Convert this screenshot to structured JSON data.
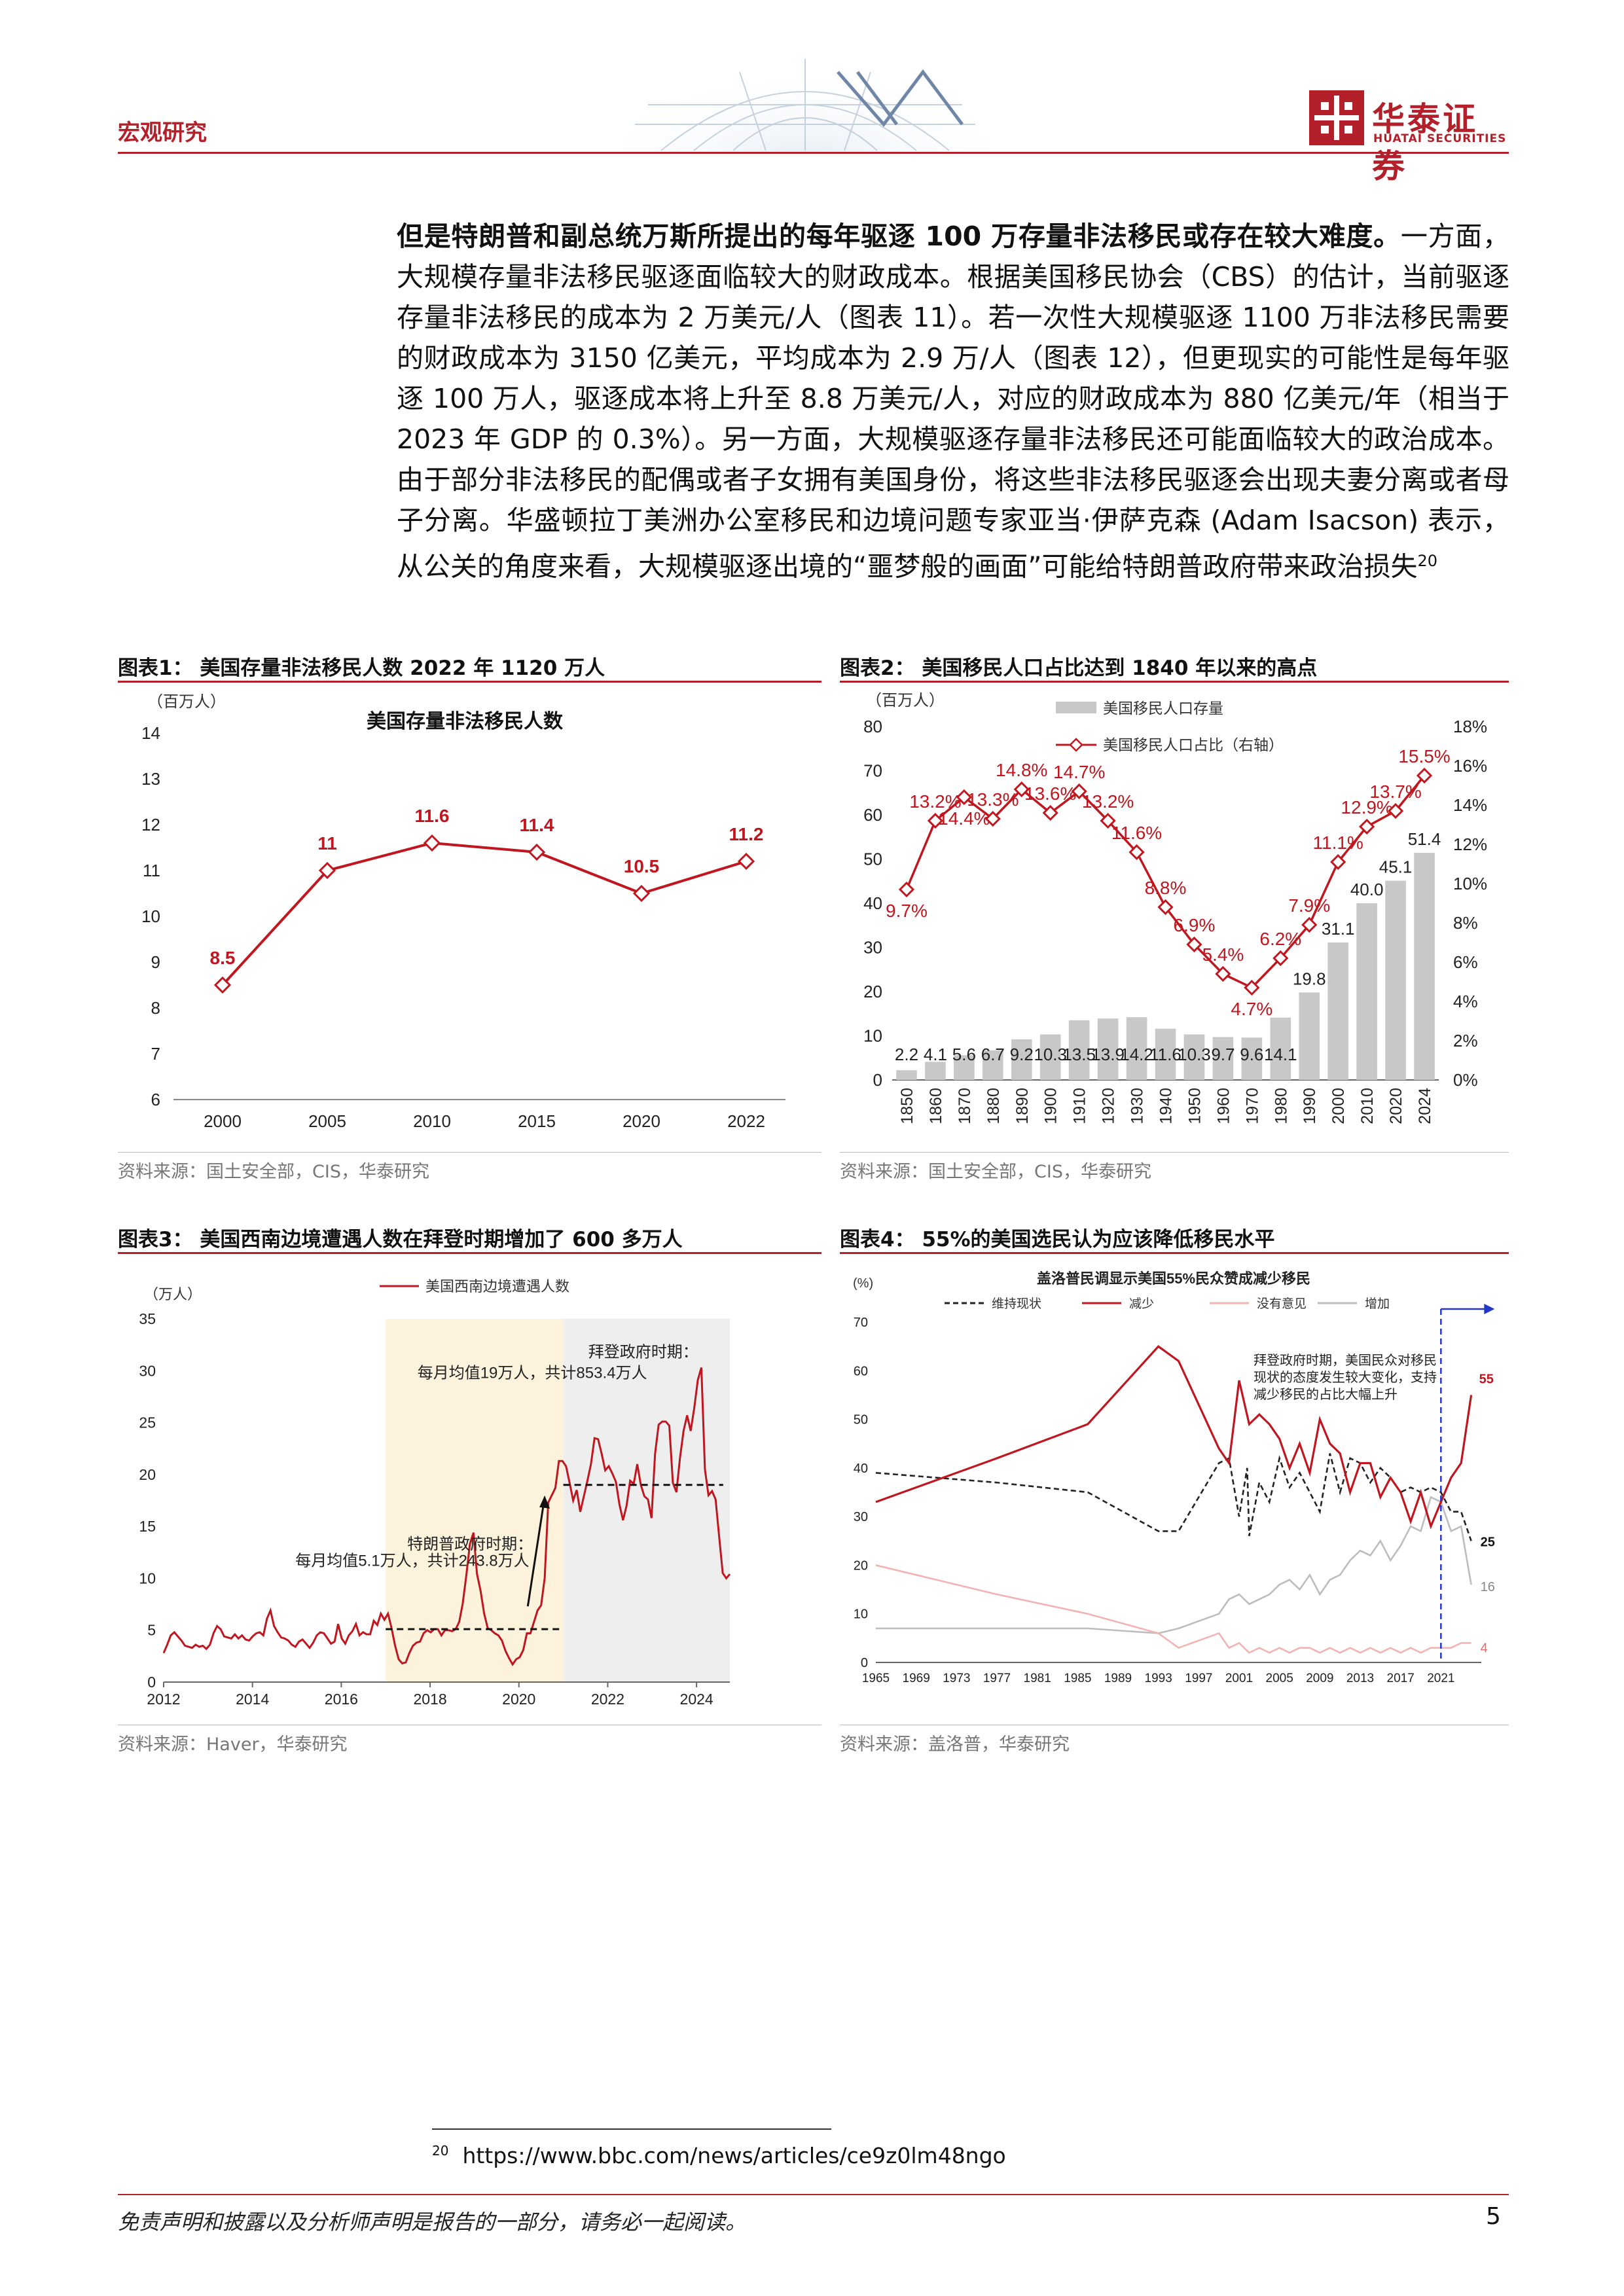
{
  "header": {
    "section": "宏观研究",
    "logo_cn": "华泰证券",
    "logo_en": "HUATAI SECURITIES"
  },
  "body": {
    "bold_lead": "但是特朗普和副总统万斯所提出的每年驱逐 100 万存量非法移民或存在较大难度。",
    "paragraph": "一方面，大规模存量非法移民驱逐面临较大的财政成本。根据美国移民协会（CBS）的估计，当前驱逐存量非法移民的成本为 2 万美元/人（图表 11）。若一次性大规模驱逐 1100 万非法移民需要的财政成本为 3150 亿美元，平均成本为 2.9 万/人（图表 12），但更现实的可能性是每年驱逐 100 万人，驱逐成本将上升至 8.8 万美元/人，对应的财政成本为 880 亿美元/年（相当于 2023 年 GDP 的 0.3%）。另一方面，大规模驱逐存量非法移民还可能面临较大的政治成本。由于部分非法移民的配偶或者子女拥有美国身份，将这些非法移民驱逐会出现夫妻分离或者母子分离。华盛顿拉丁美洲办公室移民和边境问题专家亚当·伊萨克森 (Adam Isacson) 表示，从公关的角度来看，大规模驱逐出境的“噩梦般的画面”可能给特朗普政府带来政治损失",
    "footnote_ref": "20"
  },
  "fig1": {
    "title": "图表1：  美国存量非法移民人数 2022 年 1120 万人",
    "source": "资料来源：国土安全部，CIS，华泰研究"
  },
  "fig2": {
    "title": "图表2：  美国移民人口占比达到 1840 年以来的高点",
    "source": "资料来源：国土安全部，CIS，华泰研究"
  },
  "fig3": {
    "title": "图表3：  美国西南边境遭遇人数在拜登时期增加了 600 多万人",
    "source": "资料来源：Haver，华泰研究"
  },
  "fig4": {
    "title": "图表4：  55%的美国选民认为应该降低移民水平",
    "source": "资料来源：盖洛普，华泰研究"
  },
  "chart_data": [
    {
      "type": "line",
      "title": "美国存量非法移民人数",
      "ylabel": "（百万人）",
      "x": [
        "2000",
        "2005",
        "2010",
        "2015",
        "2020",
        "2022"
      ],
      "values": [
        8.5,
        11,
        11.6,
        11.4,
        10.5,
        11.2
      ],
      "data_labels": [
        "8.5",
        "11",
        "11.6",
        "11.4",
        "10.5",
        "11.2"
      ],
      "ylim": [
        6,
        14
      ],
      "yticks": [
        "6",
        "7",
        "8",
        "9",
        "10",
        "11",
        "12",
        "13",
        "14"
      ],
      "color": "#c0161f"
    },
    {
      "type": "bar",
      "ylabel": "（百万人）",
      "categories": [
        "1850",
        "1860",
        "1870",
        "1880",
        "1890",
        "1900",
        "1910",
        "1920",
        "1930",
        "1940",
        "1950",
        "1960",
        "1970",
        "1980",
        "1990",
        "2000",
        "2010",
        "2020",
        "2024"
      ],
      "series": [
        {
          "name": "美国移民人口存量",
          "type": "bar",
          "values": [
            2.2,
            4.1,
            5.6,
            6.7,
            9.2,
            10.3,
            13.5,
            13.9,
            14.2,
            11.6,
            10.3,
            9.7,
            9.6,
            14.1,
            19.8,
            31.1,
            40.0,
            45.1,
            51.4
          ],
          "labels": [
            "2.2",
            "4.1",
            "5.6",
            "6.7",
            "9.2",
            "10.3",
            "13.5",
            "13.9",
            "14.2",
            "11.6",
            "10.3",
            "9.7",
            "9.6",
            "14.1",
            "19.8",
            "31.1",
            "40.0",
            "45.1",
            "51.4"
          ],
          "color": "#c8c8c8"
        },
        {
          "name": "美国移民人口占比（右轴）",
          "type": "line",
          "axis": "right",
          "values": [
            9.7,
            13.2,
            14.4,
            13.3,
            14.8,
            13.6,
            14.7,
            13.2,
            11.6,
            8.8,
            6.9,
            5.4,
            4.7,
            6.2,
            7.9,
            11.1,
            12.9,
            13.7,
            15.5
          ],
          "labels": [
            "9.7%",
            "13.2%",
            "14.4%",
            "13.3%",
            "14.8%",
            "13.6%",
            "14.7%",
            "13.2%",
            "11.6%",
            "8.8%",
            "6.9%",
            "5.4%",
            "4.7%",
            "6.2%",
            "7.9%",
            "11.1%",
            "12.9%",
            "13.7%",
            "15.5%"
          ],
          "color": "#c0161f"
        }
      ],
      "ylim": [
        0,
        80
      ],
      "yticks": [
        "0",
        "10",
        "20",
        "30",
        "40",
        "50",
        "60",
        "70",
        "80"
      ],
      "y2lim": [
        0,
        18
      ],
      "y2ticks": [
        "0%",
        "2%",
        "4%",
        "6%",
        "8%",
        "10%",
        "12%",
        "14%",
        "16%",
        "18%"
      ]
    },
    {
      "type": "line",
      "ylabel": "（万人）",
      "legend": "美国西南边境遭遇人数",
      "xticks": [
        "2012",
        "2014",
        "2016",
        "2018",
        "2020",
        "2022",
        "2024"
      ],
      "ylim": [
        0,
        35
      ],
      "yticks": [
        "0",
        "5",
        "10",
        "15",
        "20",
        "25",
        "30",
        "35"
      ],
      "series": [
        {
          "name": "美国西南边境遭遇人数",
          "color": "#c0161f",
          "values": [
            2.8,
            3.6,
            4.5,
            4.8,
            4.4,
            4.0,
            3.5,
            3.4,
            3.3,
            3.6,
            3.4,
            3.5,
            3.2,
            3.6,
            4.7,
            5.4,
            5.1,
            4.4,
            4.3,
            4.2,
            4.6,
            4.2,
            4.5,
            4.1,
            4.0,
            4.4,
            4.7,
            4.8,
            4.5,
            6.1,
            6.9,
            5.4,
            4.8,
            4.3,
            4.2,
            4.0,
            3.6,
            3.4,
            3.9,
            4.1,
            3.7,
            3.3,
            3.8,
            4.5,
            4.8,
            4.7,
            4.2,
            3.7,
            3.9,
            5.6,
            4.2,
            3.7,
            4.5,
            4.9,
            5.6,
            4.5,
            4.8,
            4.6,
            4.6,
            5.9,
            5.5,
            6.6,
            6.0,
            6.6,
            5.2,
            3.5,
            2.2,
            1.8,
            1.9,
            2.8,
            3.5,
            3.8,
            3.9,
            4.7,
            5.0,
            4.8,
            5.1,
            5.1,
            4.5,
            5.0,
            5.0,
            4.9,
            5.1,
            5.8,
            7.6,
            10.3,
            13.3,
            14.4,
            10.4,
            8.8,
            6.6,
            5.2,
            5.0,
            4.7,
            4.5,
            4.0,
            3.0,
            2.3,
            1.7,
            2.2,
            2.4,
            3.1,
            4.7,
            4.7,
            5.8,
            6.9,
            7.4,
            10.0,
            17.3,
            18.0,
            18.7,
            21.3,
            21.3,
            20.8,
            19.2,
            17.5,
            18.5,
            16.4,
            17.9,
            19.4,
            21.0,
            23.5,
            23.4,
            22.0,
            20.4,
            20.8,
            20.1,
            19.3,
            17.1,
            15.6,
            17.0,
            19.4,
            19.1,
            21.0,
            19.0,
            17.9,
            17.6,
            15.8,
            22.0,
            24.8,
            25.1,
            25.1,
            24.7,
            19.2,
            18.3,
            21.6,
            24.2,
            25.7,
            24.2,
            26.4,
            29.1,
            30.3,
            20.5,
            18.0,
            18.4,
            17.6,
            14.0,
            10.5,
            10.0,
            10.4
          ]
        }
      ],
      "annotations": [
        {
          "text": "特朗普政府时期：",
          "x_range": [
            "2017.0",
            "2021.0"
          ],
          "mean_line": 5.1
        },
        {
          "text": "每月均值5.1万人，共计243.8万人"
        },
        {
          "text": "拜登政府时期：",
          "x_range": [
            "2021.0",
            "2024.6"
          ],
          "mean_line": 19
        },
        {
          "text": "每月均值19万人，共计853.4万人"
        }
      ]
    },
    {
      "type": "line",
      "title": "盖洛普民调显示美国55%民众赞成减少移民",
      "ylabel": "(%)",
      "xticks": [
        "1965",
        "1969",
        "1973",
        "1977",
        "1981",
        "1985",
        "1989",
        "1993",
        "1997",
        "2001",
        "2005",
        "2009",
        "2013",
        "2017",
        "2021"
      ],
      "ylim": [
        0,
        70
      ],
      "yticks": [
        "0",
        "10",
        "20",
        "30",
        "40",
        "50",
        "60",
        "70"
      ],
      "series": [
        {
          "name": "维持现状",
          "style": "dashed",
          "color": "#222222",
          "points": [
            [
              1965,
              39
            ],
            [
              1977,
              37
            ],
            [
              1986,
              35
            ],
            [
              1993,
              27
            ],
            [
              1995,
              27
            ],
            [
              1999,
              41
            ],
            [
              2000,
              42
            ],
            [
              2001,
              30
            ],
            [
              2001.8,
              40
            ],
            [
              2002,
              26
            ],
            [
              2003,
              37
            ],
            [
              2004,
              33
            ],
            [
              2005,
              42
            ],
            [
              2006,
              36
            ],
            [
              2007,
              39
            ],
            [
              2008,
              35
            ],
            [
              2009,
              31
            ],
            [
              2010,
              43
            ],
            [
              2011,
              35
            ],
            [
              2012,
              42
            ],
            [
              2013,
              41
            ],
            [
              2014,
              37
            ],
            [
              2015,
              40
            ],
            [
              2016,
              38
            ],
            [
              2017,
              35
            ],
            [
              2018,
              36
            ],
            [
              2019,
              35
            ],
            [
              2020,
              36
            ],
            [
              2021,
              35
            ],
            [
              2022,
              31
            ],
            [
              2023,
              31
            ],
            [
              2024,
              25
            ]
          ],
          "end_label": "25"
        },
        {
          "name": "减少",
          "style": "solid",
          "color": "#c0161f",
          "points": [
            [
              1965,
              33
            ],
            [
              1977,
              42
            ],
            [
              1986,
              49
            ],
            [
              1993,
              65
            ],
            [
              1995,
              62
            ],
            [
              1999,
              44
            ],
            [
              2000,
              41
            ],
            [
              2001,
              58
            ],
            [
              2002,
              49
            ],
            [
              2003,
              51
            ],
            [
              2004,
              49
            ],
            [
              2005,
              46
            ],
            [
              2006,
              40
            ],
            [
              2007,
              45
            ],
            [
              2008,
              39
            ],
            [
              2009,
              50
            ],
            [
              2010,
              45
            ],
            [
              2011,
              43
            ],
            [
              2012,
              35
            ],
            [
              2013,
              41
            ],
            [
              2014,
              41
            ],
            [
              2015,
              34
            ],
            [
              2016,
              38
            ],
            [
              2017,
              35
            ],
            [
              2018,
              29
            ],
            [
              2019,
              35
            ],
            [
              2020,
              28
            ],
            [
              2021,
              33
            ],
            [
              2022,
              38
            ],
            [
              2023,
              41
            ],
            [
              2024,
              55
            ]
          ],
          "end_label": "55"
        },
        {
          "name": "没有意见",
          "style": "solid",
          "color": "#f2b3b3",
          "points": [
            [
              1965,
              20
            ],
            [
              1977,
              14
            ],
            [
              1986,
              10
            ],
            [
              1993,
              6
            ],
            [
              1995,
              3
            ],
            [
              1999,
              6
            ],
            [
              2000,
              3
            ],
            [
              2001,
              4
            ],
            [
              2002,
              2
            ],
            [
              2003,
              3
            ],
            [
              2004,
              2
            ],
            [
              2005,
              3
            ],
            [
              2006,
              2
            ],
            [
              2007,
              3
            ],
            [
              2008,
              3
            ],
            [
              2009,
              2
            ],
            [
              2010,
              3
            ],
            [
              2011,
              2
            ],
            [
              2012,
              3
            ],
            [
              2013,
              2
            ],
            [
              2014,
              3
            ],
            [
              2015,
              2
            ],
            [
              2016,
              3
            ],
            [
              2017,
              2
            ],
            [
              2018,
              3
            ],
            [
              2019,
              2
            ],
            [
              2020,
              3
            ],
            [
              2021,
              3
            ],
            [
              2022,
              3
            ],
            [
              2023,
              4
            ],
            [
              2024,
              4
            ]
          ],
          "end_label": "4"
        },
        {
          "name": "增加",
          "style": "solid",
          "color": "#bdbdbd",
          "points": [
            [
              1965,
              7
            ],
            [
              1977,
              7
            ],
            [
              1986,
              7
            ],
            [
              1993,
              6
            ],
            [
              1995,
              7
            ],
            [
              1999,
              10
            ],
            [
              2000,
              13
            ],
            [
              2001,
              14
            ],
            [
              2002,
              12
            ],
            [
              2003,
              13
            ],
            [
              2004,
              14
            ],
            [
              2005,
              16
            ],
            [
              2006,
              17
            ],
            [
              2007,
              15
            ],
            [
              2008,
              18
            ],
            [
              2009,
              14
            ],
            [
              2010,
              17
            ],
            [
              2011,
              18
            ],
            [
              2012,
              21
            ],
            [
              2013,
              23
            ],
            [
              2014,
              22
            ],
            [
              2015,
              25
            ],
            [
              2016,
              21
            ],
            [
              2017,
              24
            ],
            [
              2018,
              28
            ],
            [
              2019,
              27
            ],
            [
              2020,
              34
            ],
            [
              2021,
              33
            ],
            [
              2022,
              27
            ],
            [
              2023,
              28
            ],
            [
              2024,
              16
            ]
          ],
          "end_label": "16"
        }
      ],
      "annotation": [
        "拜登政府时期，美国民众对移民",
        "现状的态度发生较大变化，支持",
        "减少移民的占比大幅上升"
      ],
      "marker_year": 2021
    }
  ],
  "footnote": {
    "num": "20",
    "text": "https://www.bbc.com/news/articles/ce9z0lm48ngo"
  },
  "footer": {
    "disclaimer": "免责声明和披露以及分析师声明是报告的一部分，请务必一起阅读。",
    "page": "5"
  }
}
